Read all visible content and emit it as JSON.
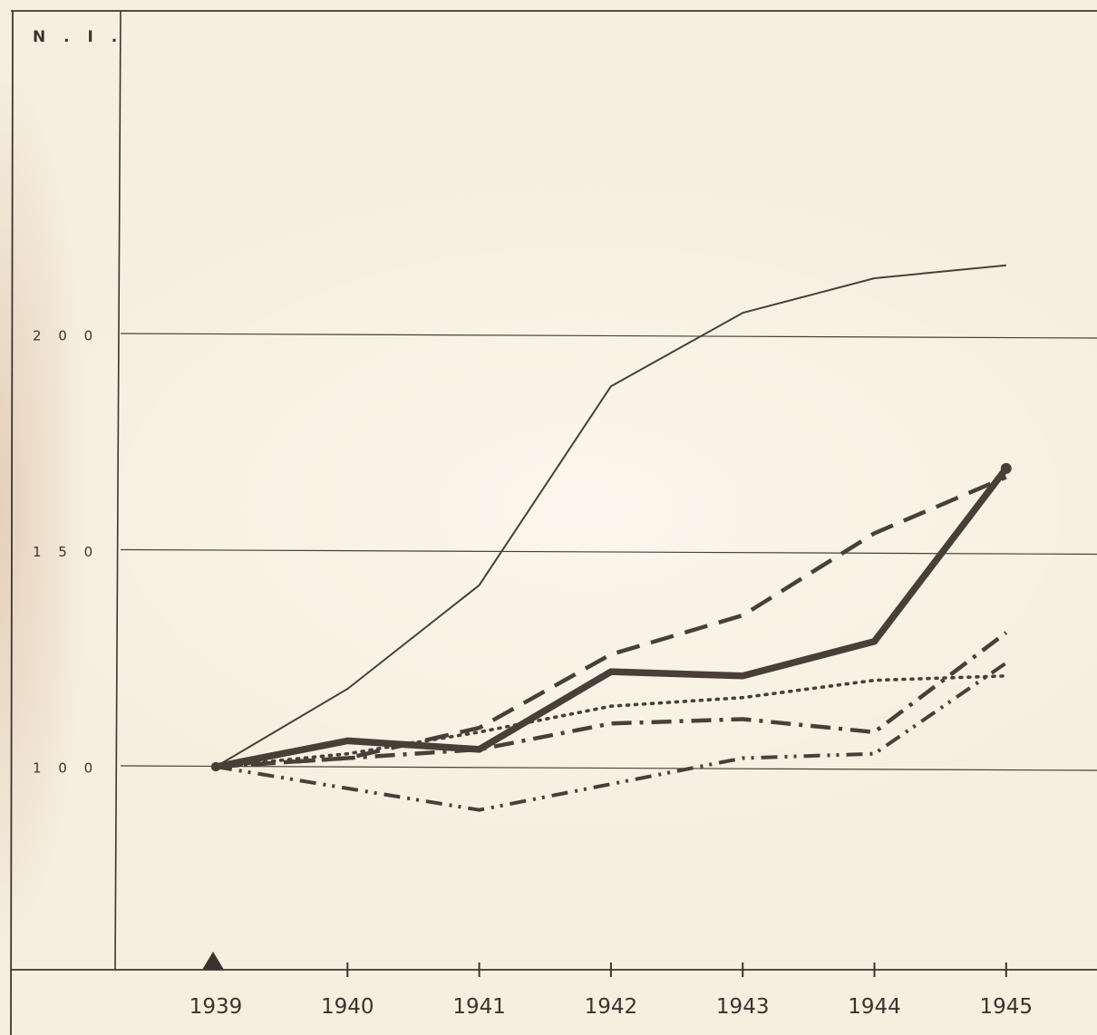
{
  "chart_data": {
    "type": "line",
    "ylabel": "N . I .",
    "x": [
      "1939",
      "1940",
      "1941",
      "1942",
      "1943",
      "1944",
      "1945"
    ],
    "ylim": [
      55,
      270
    ],
    "yticks": [
      {
        "value": 200,
        "label": "2 0 0"
      },
      {
        "value": 150,
        "label": "1 5 0"
      },
      {
        "value": 100,
        "label": "1 0 0"
      }
    ],
    "grid": true,
    "base_marker": "triangle at 1939",
    "series": [
      {
        "style": "solid-thin",
        "values": [
          100,
          118,
          142,
          188,
          205,
          213,
          216
        ]
      },
      {
        "style": "solid-bold",
        "values": [
          100,
          106,
          104,
          122,
          121,
          129,
          169
        ]
      },
      {
        "style": "dashed",
        "values": [
          100,
          102,
          109,
          126,
          135,
          154,
          167
        ]
      },
      {
        "style": "dotted",
        "values": [
          100,
          103,
          108,
          114,
          116,
          120,
          121
        ]
      },
      {
        "style": "dash-dot",
        "values": [
          100,
          102,
          104,
          110,
          111,
          108,
          131
        ]
      },
      {
        "style": "dash-dot-dot",
        "values": [
          100,
          95,
          90,
          96,
          102,
          103,
          124
        ]
      }
    ]
  },
  "colors": {
    "paper": "#f6eedf",
    "ink": "#4a3f38",
    "frame": "#3d3530"
  }
}
